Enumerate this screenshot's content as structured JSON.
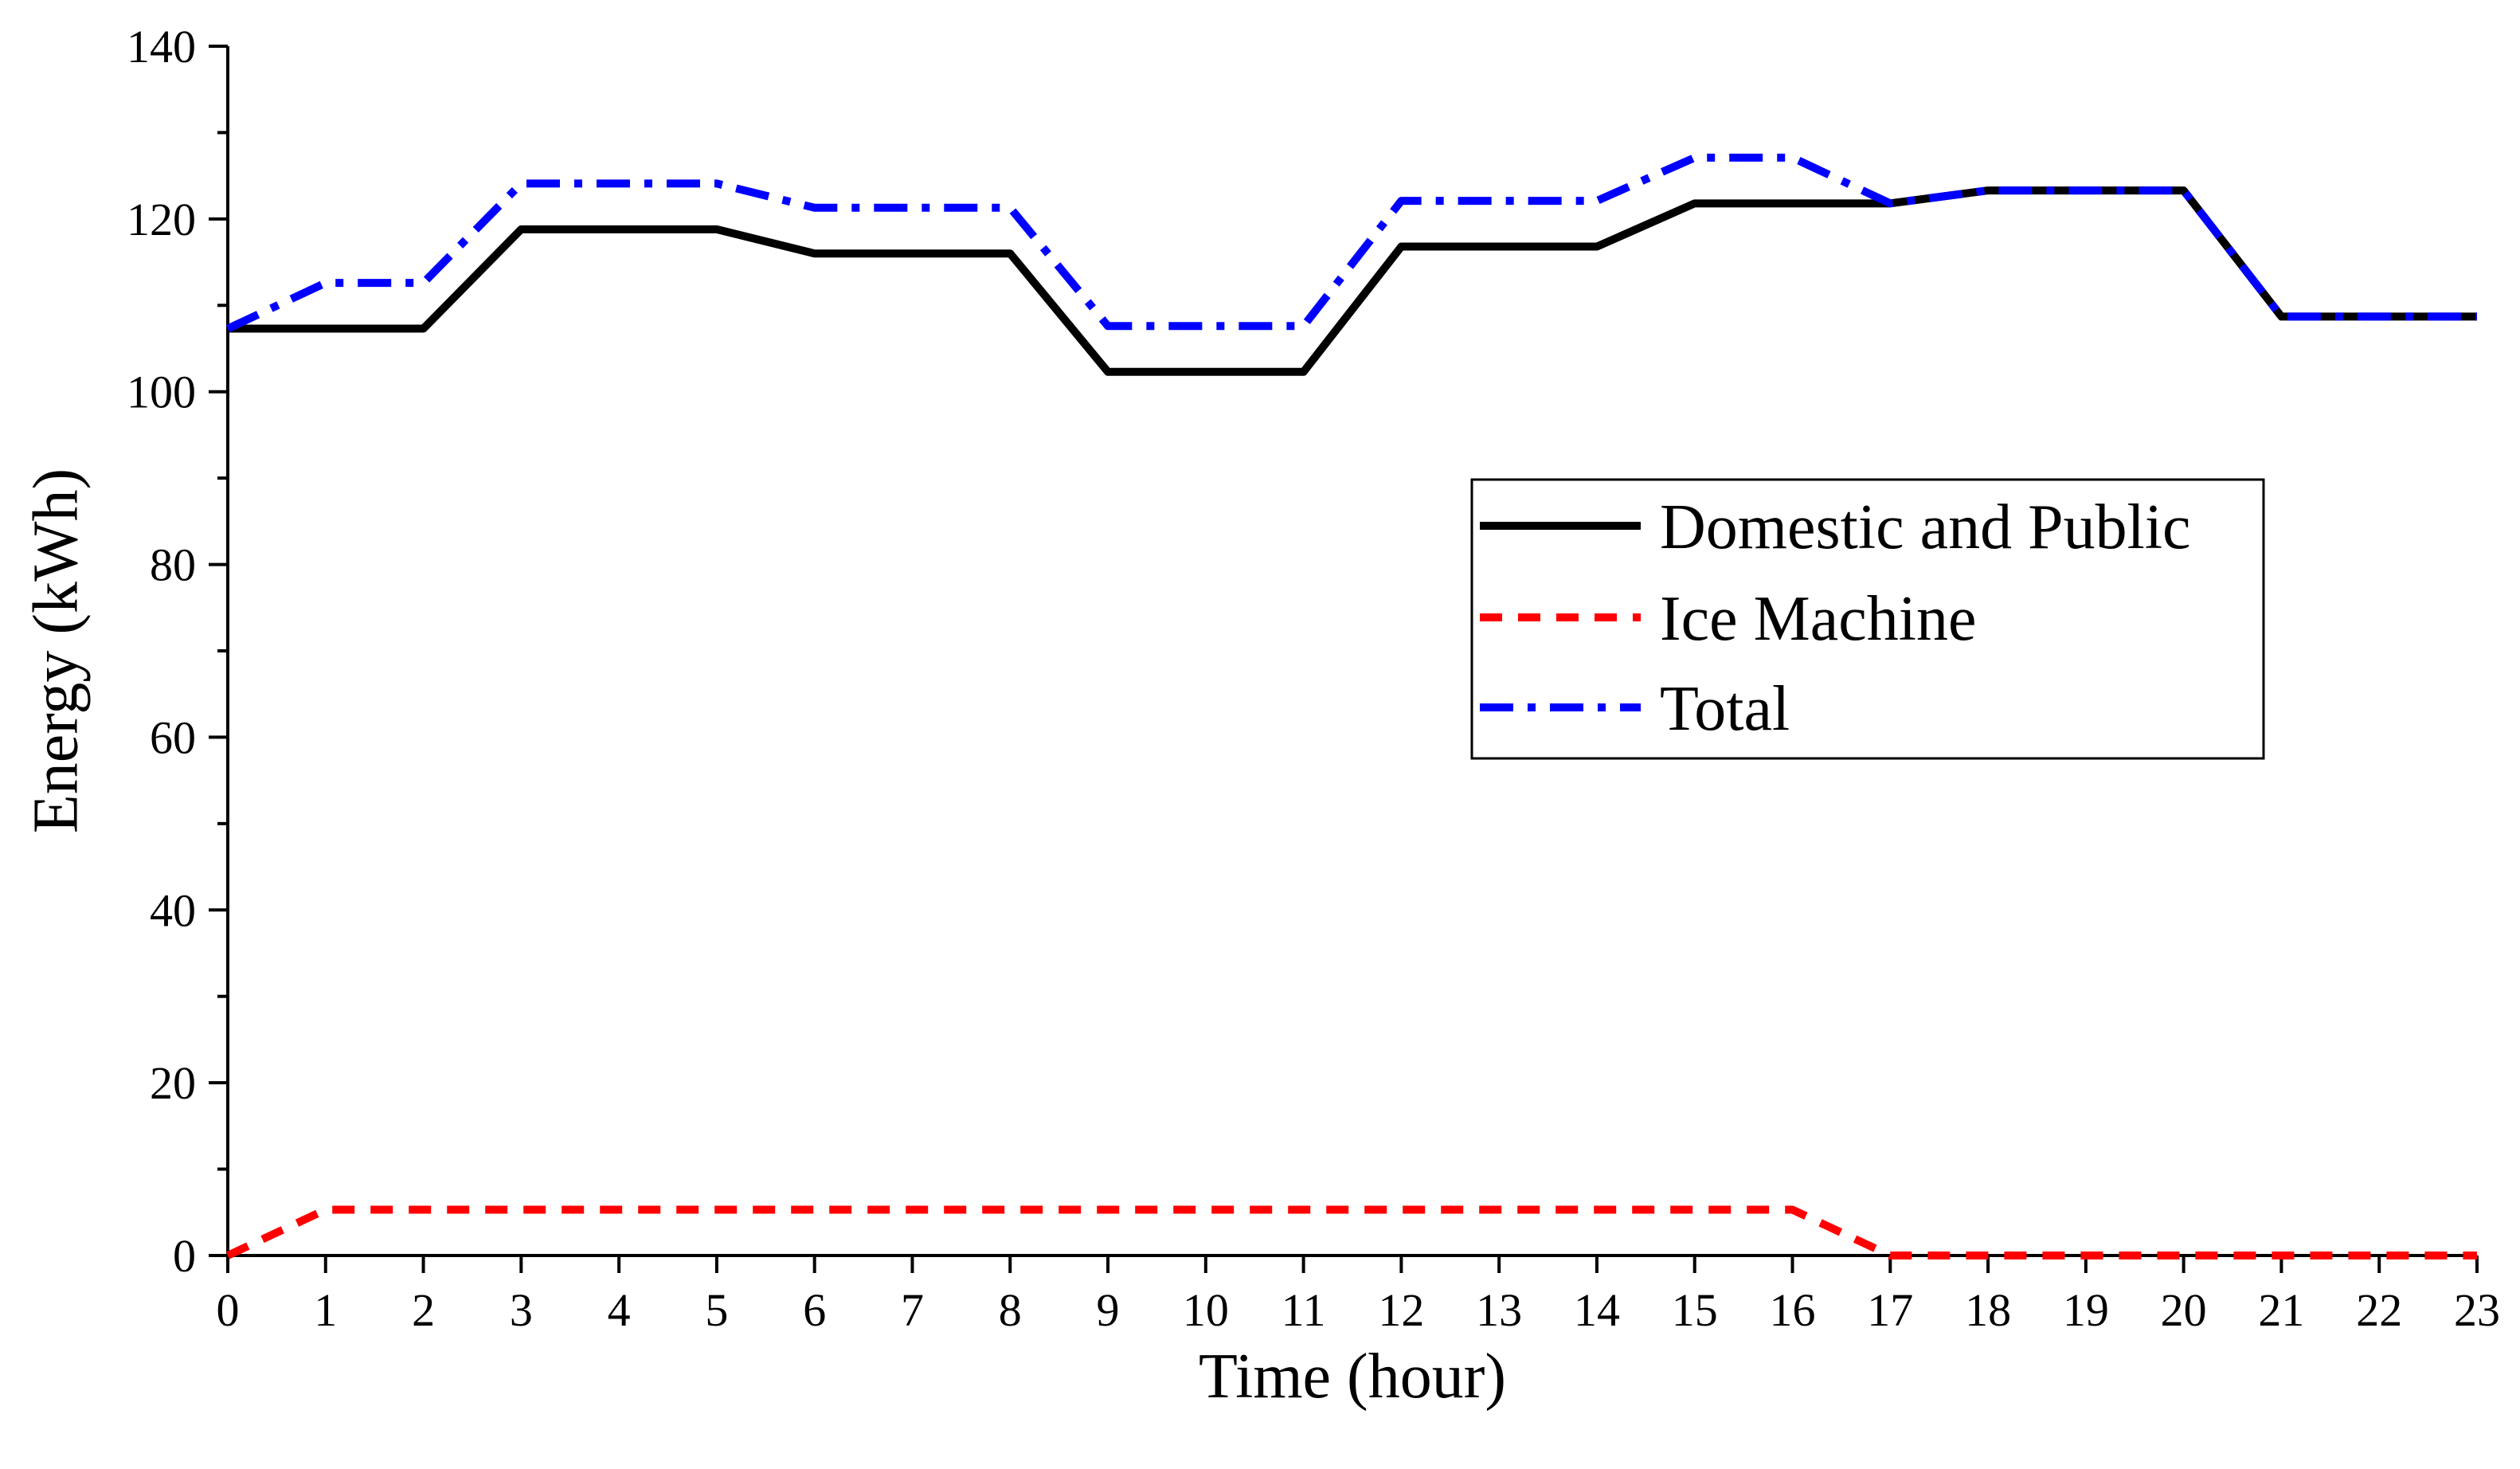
{
  "chart_data": {
    "type": "line",
    "title": "",
    "xlabel": "Time (hour)",
    "ylabel": "Energy (kWh)",
    "x": [
      0,
      1,
      2,
      3,
      4,
      5,
      6,
      7,
      8,
      9,
      10,
      11,
      12,
      13,
      14,
      15,
      16,
      17,
      18,
      19,
      20,
      21,
      22,
      23
    ],
    "xlim": [
      0,
      23
    ],
    "ylim": [
      0,
      140
    ],
    "x_ticks": [
      "0",
      "1",
      "2",
      "3",
      "4",
      "5",
      "6",
      "7",
      "8",
      "9",
      "10",
      "11",
      "12",
      "13",
      "14",
      "15",
      "16",
      "17",
      "18",
      "19",
      "20",
      "21",
      "22",
      "23"
    ],
    "y_ticks": [
      "0",
      "20",
      "40",
      "60",
      "80",
      "100",
      "120",
      "140"
    ],
    "grid": false,
    "legend_position": "center-right",
    "series": [
      {
        "name": "Domestic and Public",
        "color": "#000000",
        "style": "solid",
        "values": [
          107.3,
          107.3,
          107.3,
          118.8,
          118.8,
          118.8,
          116.0,
          116.0,
          116.0,
          102.3,
          102.3,
          102.3,
          116.8,
          116.8,
          116.8,
          121.8,
          121.8,
          121.8,
          123.3,
          123.3,
          123.3,
          108.7,
          108.7,
          108.7
        ]
      },
      {
        "name": "Ice Machine",
        "color": "#ff0000",
        "style": "dashed",
        "values": [
          0,
          5.3,
          5.3,
          5.3,
          5.3,
          5.3,
          5.3,
          5.3,
          5.3,
          5.3,
          5.3,
          5.3,
          5.3,
          5.3,
          5.3,
          5.3,
          5.3,
          0,
          0,
          0,
          0,
          0,
          0,
          0
        ]
      },
      {
        "name": "Total",
        "color": "#0000ff",
        "style": "dashdot",
        "values": [
          107.3,
          112.6,
          112.6,
          124.1,
          124.1,
          124.1,
          121.3,
          121.3,
          121.3,
          107.6,
          107.6,
          107.6,
          122.1,
          122.1,
          122.1,
          127.1,
          127.1,
          121.8,
          123.3,
          123.3,
          123.3,
          108.7,
          108.7,
          108.7
        ]
      }
    ]
  }
}
